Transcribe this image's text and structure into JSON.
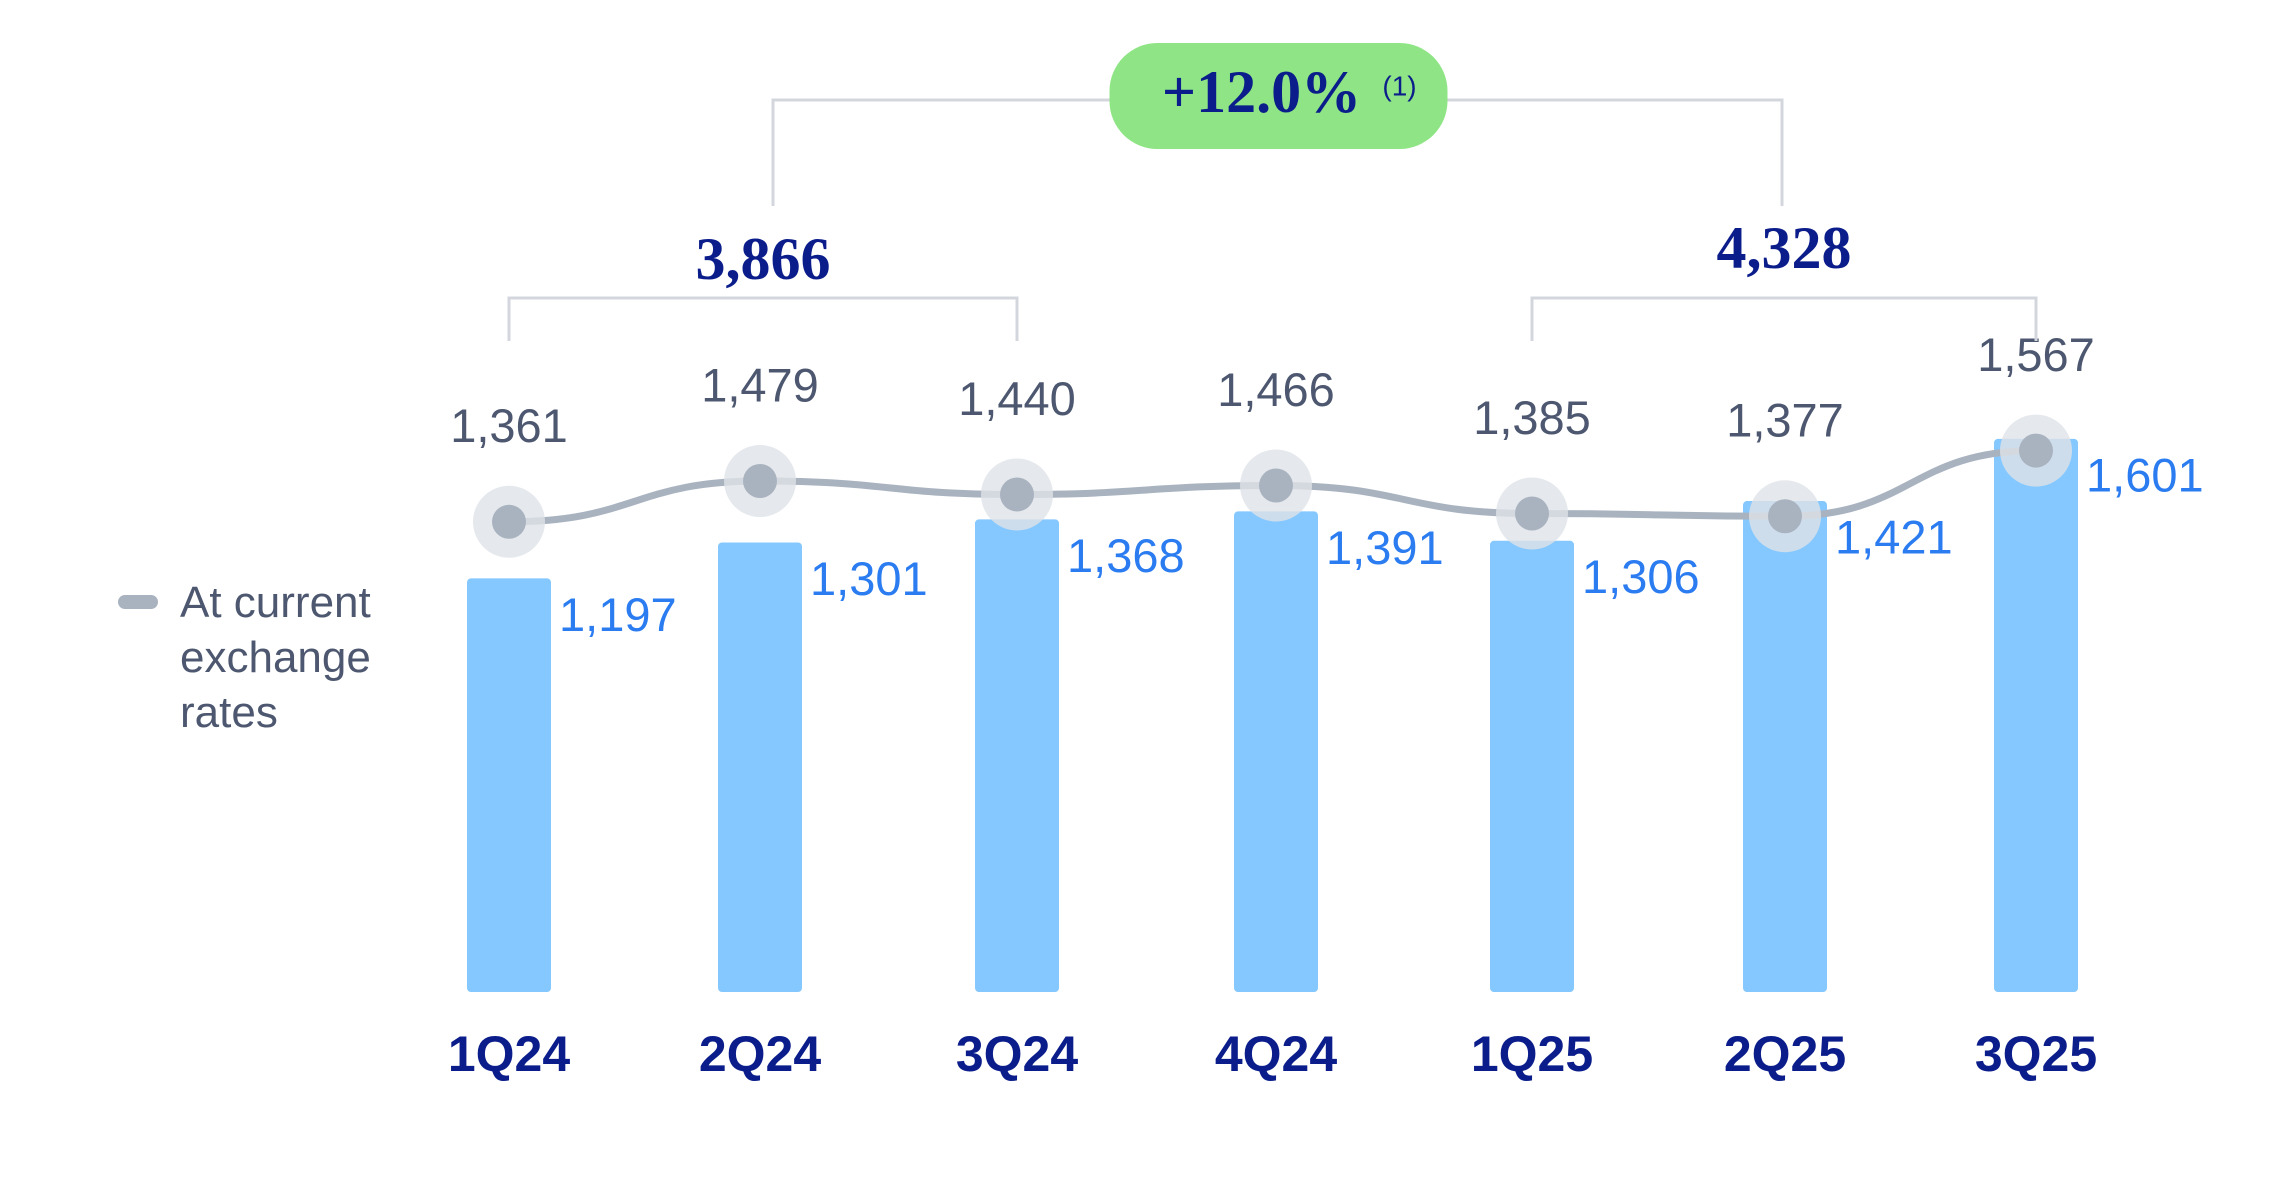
{
  "chart_data": {
    "type": "bar",
    "categories": [
      "1Q24",
      "2Q24",
      "3Q24",
      "4Q24",
      "1Q25",
      "2Q25",
      "3Q25"
    ],
    "series": [
      {
        "type": "bar",
        "color": "#85c8ff",
        "label_color": "#2a7cf0",
        "values": [
          1197,
          1301,
          1368,
          1391,
          1306,
          1421,
          1601
        ],
        "value_labels": [
          "1,197",
          "1,301",
          "1,368",
          "1,391",
          "1,306",
          "1,421",
          "1,601"
        ]
      },
      {
        "type": "line",
        "name": "At current exchange rates",
        "color": "#a9b3c0",
        "label_color": "#4d5870",
        "values": [
          1361,
          1479,
          1440,
          1466,
          1385,
          1377,
          1567
        ],
        "value_labels": [
          "1,361",
          "1,479",
          "1,440",
          "1,466",
          "1,385",
          "1,377",
          "1,567"
        ]
      }
    ],
    "annotations": [
      {
        "text": "3,866",
        "from": 0,
        "to": 2
      },
      {
        "text": "4,328",
        "from": 4,
        "to": 6
      },
      {
        "text": "+12.0%",
        "note": "(1)",
        "from": 0,
        "to": 1,
        "color": "#8fe585"
      }
    ]
  }
}
